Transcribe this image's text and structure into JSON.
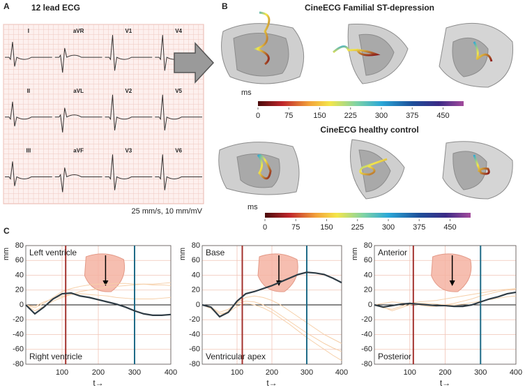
{
  "panel_a": {
    "label": "A",
    "title": "12 lead ECG",
    "leads": [
      "I",
      "aVR",
      "V1",
      "V4",
      "II",
      "aVL",
      "V2",
      "V5",
      "III",
      "aVF",
      "V3",
      "V6"
    ],
    "caption": "25 mm/s, 10 mm/mV"
  },
  "panel_b": {
    "label": "B",
    "views": [
      {
        "title": "CineECG Familial ST-depression",
        "colorbar": {
          "label": "ms",
          "lim": [
            0,
            500
          ],
          "ticks": [
            0,
            75,
            150,
            225,
            300,
            375,
            450
          ]
        }
      },
      {
        "title": "CineECG healthy control",
        "colorbar": {
          "label": "ms",
          "lim": [
            0,
            500
          ],
          "ticks": [
            0,
            75,
            150,
            225,
            300,
            375,
            450
          ]
        }
      }
    ]
  },
  "panel_c": {
    "label": "C"
  },
  "chart_data": [
    {
      "type": "line",
      "ylabel": "mm",
      "xlabel": "t→",
      "annotation_top": "Left ventricle",
      "annotation_bottom": "Right ventricle",
      "x": [
        0,
        25,
        50,
        75,
        100,
        125,
        150,
        175,
        200,
        225,
        250,
        275,
        300,
        325,
        350,
        375,
        400
      ],
      "series": [
        {
          "color": "#f6cfa8",
          "values": [
            0,
            -4,
            2,
            10,
            18,
            22,
            25,
            27,
            28,
            28,
            29,
            29,
            28,
            28,
            27,
            27,
            26
          ]
        },
        {
          "color": "#f6cfa8",
          "values": [
            0,
            -8,
            -2,
            5,
            10,
            14,
            18,
            20,
            22,
            24,
            25,
            26,
            27,
            28,
            28,
            29,
            30
          ]
        },
        {
          "color": "#f6cfa8",
          "values": [
            0,
            -2,
            4,
            8,
            12,
            14,
            15,
            14,
            13,
            12,
            10,
            9,
            8,
            8,
            8,
            9,
            10
          ]
        },
        {
          "color": "#2f3c45",
          "values": [
            0,
            -12,
            -3,
            8,
            15,
            16,
            12,
            10,
            7,
            4,
            1,
            -3,
            -8,
            -12,
            -14,
            -14,
            -13
          ]
        }
      ],
      "vlines": [
        {
          "x": 110,
          "color": "#a3312d"
        },
        {
          "x": 300,
          "color": "#1f6b87"
        }
      ],
      "xlim": [
        0,
        400
      ],
      "ylim": [
        -80,
        80
      ],
      "xticks": [
        100,
        200,
        300,
        400
      ],
      "yticks": [
        -80,
        -60,
        -40,
        -20,
        0,
        20,
        40,
        60,
        80
      ],
      "grid": true
    },
    {
      "type": "line",
      "ylabel": "mm",
      "xlabel": "t→",
      "annotation_top": "Base",
      "annotation_bottom": "Ventricular apex",
      "x": [
        0,
        25,
        50,
        75,
        100,
        125,
        150,
        175,
        200,
        225,
        250,
        275,
        300,
        325,
        350,
        375,
        400
      ],
      "series": [
        {
          "color": "#f6cfa8",
          "values": [
            0,
            -5,
            -15,
            -8,
            2,
            5,
            4,
            0,
            -6,
            -14,
            -22,
            -30,
            -38,
            -45,
            -52,
            -58,
            -63
          ]
        },
        {
          "color": "#f6cfa8",
          "values": [
            0,
            -3,
            -10,
            -6,
            3,
            10,
            12,
            10,
            6,
            0,
            -8,
            -16,
            -24,
            -32,
            -40,
            -46,
            -52
          ]
        },
        {
          "color": "#f6cfa8",
          "values": [
            0,
            -4,
            -12,
            -10,
            -2,
            2,
            0,
            -4,
            -10,
            -18,
            -26,
            -35,
            -44,
            -52,
            -60,
            -68,
            -75
          ]
        },
        {
          "color": "#2f3c45",
          "values": [
            0,
            -3,
            -16,
            -10,
            5,
            15,
            18,
            22,
            26,
            31,
            36,
            41,
            44,
            43,
            41,
            36,
            30
          ]
        }
      ],
      "vlines": [
        {
          "x": 115,
          "color": "#a3312d"
        },
        {
          "x": 300,
          "color": "#1f6b87"
        }
      ],
      "xlim": [
        0,
        400
      ],
      "ylim": [
        -80,
        80
      ],
      "xticks": [
        100,
        200,
        300,
        400
      ],
      "yticks": [
        -80,
        -60,
        -40,
        -20,
        0,
        20,
        40,
        60,
        80
      ],
      "grid": true
    },
    {
      "type": "line",
      "ylabel": "mm",
      "xlabel": "t→",
      "annotation_top": "Anterior",
      "annotation_bottom": "Posterior",
      "x": [
        0,
        25,
        50,
        75,
        100,
        125,
        150,
        175,
        200,
        225,
        250,
        275,
        300,
        325,
        350,
        375,
        400
      ],
      "series": [
        {
          "color": "#f6cfa8",
          "values": [
            0,
            -4,
            -6,
            -2,
            2,
            4,
            5,
            6,
            8,
            10,
            12,
            14,
            16,
            18,
            20,
            21,
            22
          ]
        },
        {
          "color": "#f6cfa8",
          "values": [
            0,
            2,
            4,
            3,
            1,
            0,
            -2,
            -2,
            0,
            2,
            5,
            8,
            12,
            15,
            18,
            20,
            21
          ]
        },
        {
          "color": "#f6cfa8",
          "values": [
            0,
            -3,
            -8,
            -4,
            0,
            2,
            2,
            1,
            0,
            0,
            1,
            3,
            5,
            7,
            9,
            11,
            12
          ]
        },
        {
          "color": "#2f3c45",
          "values": [
            0,
            -3,
            -1,
            1,
            2,
            1,
            0,
            -1,
            -1,
            -2,
            -2,
            0,
            4,
            8,
            11,
            15,
            17
          ]
        }
      ],
      "vlines": [
        {
          "x": 110,
          "color": "#a3312d"
        },
        {
          "x": 300,
          "color": "#1f6b87"
        }
      ],
      "xlim": [
        0,
        400
      ],
      "ylim": [
        -80,
        80
      ],
      "xticks": [
        100,
        200,
        300,
        400
      ],
      "yticks": [
        -80,
        -60,
        -40,
        -20,
        0,
        20,
        40,
        60,
        80
      ],
      "grid": true
    }
  ]
}
